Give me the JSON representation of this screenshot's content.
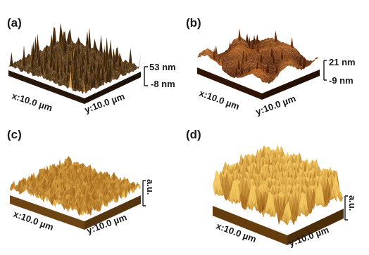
{
  "panels": [
    {
      "label": "(a)",
      "x_axis": "x:10.0 µm",
      "y_axis": "y:10.0 µm",
      "z_max": "53 nm",
      "z_min": "-8 nm",
      "colors": {
        "base": "#3b2410",
        "peak": "#d9a14a"
      }
    },
    {
      "label": "(b)",
      "x_axis": "x:10.0 µm",
      "y_axis": "y:10.0 µm",
      "z_max": "21 nm",
      "z_min": "-9 nm",
      "colors": {
        "base": "#4a1e08",
        "peak": "#c4702c"
      }
    },
    {
      "label": "(c)",
      "x_axis": "x:10.0 µm",
      "y_axis": "y:10.0 µm",
      "z_unit": "a.u.",
      "colors": {
        "base": "#a86a1e",
        "peak": "#f0c35a"
      }
    },
    {
      "label": "(d)",
      "x_axis": "x:10.0 µm",
      "y_axis": "y:10.0 µm",
      "z_unit": "a.u.",
      "colors": {
        "base": "#9a5c14",
        "peak": "#f4c860"
      }
    }
  ]
}
